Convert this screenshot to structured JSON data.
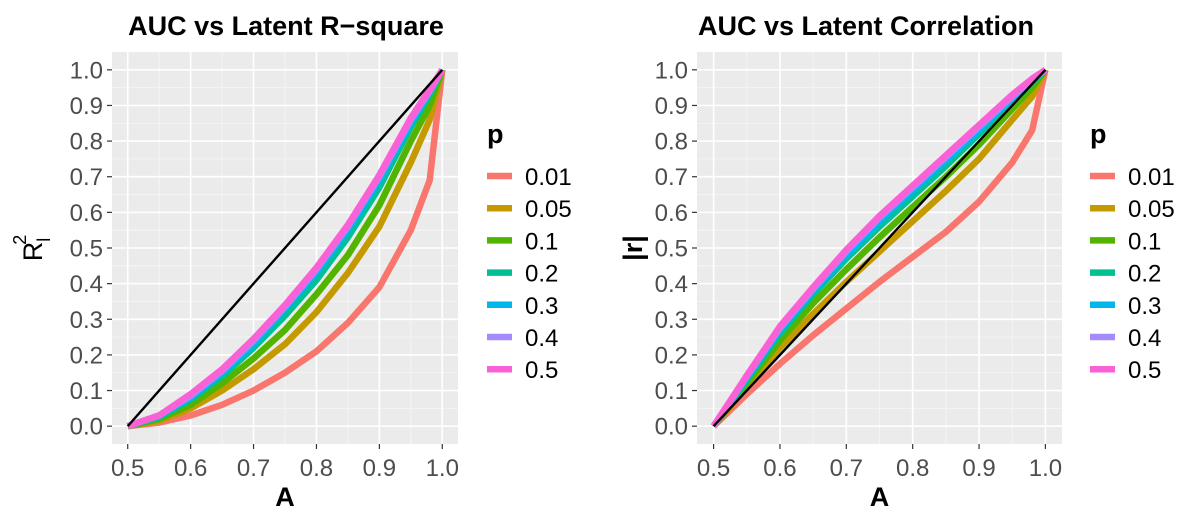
{
  "chart_data": [
    {
      "type": "line",
      "title": "AUC vs Latent R−square",
      "xlabel": "A",
      "ylabel": "R",
      "ylabel_sup": "2",
      "ylabel_sub": "l",
      "xlim": [
        0.5,
        1.0
      ],
      "ylim": [
        0.0,
        1.0
      ],
      "xticks": [
        "0.5",
        "0.6",
        "0.7",
        "0.8",
        "0.9",
        "1.0"
      ],
      "yticks": [
        "0.0",
        "0.1",
        "0.2",
        "0.3",
        "0.4",
        "0.5",
        "0.6",
        "0.7",
        "0.8",
        "0.9",
        "1.0"
      ],
      "grid": true,
      "legend_title": "p",
      "legend_position": "right",
      "x": [
        0.5,
        0.55,
        0.6,
        0.65,
        0.7,
        0.75,
        0.8,
        0.85,
        0.9,
        0.95,
        0.98,
        1.0
      ],
      "series": [
        {
          "name": "0.01",
          "color": "#F8766D",
          "values": [
            0.0,
            0.01,
            0.03,
            0.06,
            0.1,
            0.15,
            0.21,
            0.29,
            0.39,
            0.55,
            0.69,
            1.0
          ]
        },
        {
          "name": "0.05",
          "color": "#C49A00",
          "values": [
            0.0,
            0.015,
            0.05,
            0.1,
            0.16,
            0.23,
            0.32,
            0.43,
            0.56,
            0.74,
            0.86,
            1.0
          ]
        },
        {
          "name": "0.1",
          "color": "#53B400",
          "values": [
            0.0,
            0.02,
            0.06,
            0.12,
            0.19,
            0.27,
            0.37,
            0.48,
            0.62,
            0.8,
            0.9,
            1.0
          ]
        },
        {
          "name": "0.2",
          "color": "#00C094",
          "values": [
            0.0,
            0.025,
            0.075,
            0.14,
            0.22,
            0.31,
            0.41,
            0.53,
            0.67,
            0.84,
            0.93,
            1.0
          ]
        },
        {
          "name": "0.3",
          "color": "#00B6EB",
          "values": [
            0.0,
            0.03,
            0.08,
            0.15,
            0.23,
            0.33,
            0.43,
            0.55,
            0.69,
            0.85,
            0.94,
            1.0
          ]
        },
        {
          "name": "0.4",
          "color": "#A58AFF",
          "values": [
            0.0,
            0.03,
            0.085,
            0.155,
            0.24,
            0.335,
            0.44,
            0.56,
            0.7,
            0.86,
            0.94,
            1.0
          ]
        },
        {
          "name": "0.5",
          "color": "#FB61D7",
          "values": [
            0.0,
            0.03,
            0.09,
            0.16,
            0.245,
            0.34,
            0.445,
            0.565,
            0.705,
            0.865,
            0.945,
            1.0
          ]
        }
      ],
      "reference_line": {
        "color": "#000000",
        "x": [
          0.5,
          1.0
        ],
        "values": [
          0.0,
          1.0
        ]
      }
    },
    {
      "type": "line",
      "title": "AUC vs Latent Correlation",
      "xlabel": "A",
      "ylabel": "|r|",
      "xlim": [
        0.5,
        1.0
      ],
      "ylim": [
        0.0,
        1.0
      ],
      "xticks": [
        "0.5",
        "0.6",
        "0.7",
        "0.8",
        "0.9",
        "1.0"
      ],
      "yticks": [
        "0.0",
        "0.1",
        "0.2",
        "0.3",
        "0.4",
        "0.5",
        "0.6",
        "0.7",
        "0.8",
        "0.9",
        "1.0"
      ],
      "grid": true,
      "legend_title": "p",
      "legend_position": "right",
      "x": [
        0.5,
        0.55,
        0.6,
        0.65,
        0.7,
        0.75,
        0.8,
        0.85,
        0.9,
        0.95,
        0.98,
        1.0
      ],
      "series": [
        {
          "name": "0.01",
          "color": "#F8766D",
          "values": [
            0.0,
            0.09,
            0.175,
            0.255,
            0.33,
            0.405,
            0.475,
            0.545,
            0.63,
            0.74,
            0.83,
            1.0
          ]
        },
        {
          "name": "0.05",
          "color": "#C49A00",
          "values": [
            0.0,
            0.11,
            0.22,
            0.315,
            0.405,
            0.49,
            0.575,
            0.66,
            0.75,
            0.86,
            0.925,
            1.0
          ]
        },
        {
          "name": "0.1",
          "color": "#53B400",
          "values": [
            0.0,
            0.12,
            0.24,
            0.345,
            0.44,
            0.53,
            0.615,
            0.7,
            0.79,
            0.89,
            0.95,
            1.0
          ]
        },
        {
          "name": "0.2",
          "color": "#00C094",
          "values": [
            0.0,
            0.13,
            0.26,
            0.37,
            0.47,
            0.56,
            0.645,
            0.73,
            0.82,
            0.91,
            0.965,
            1.0
          ]
        },
        {
          "name": "0.3",
          "color": "#00B6EB",
          "values": [
            0.0,
            0.135,
            0.27,
            0.38,
            0.48,
            0.575,
            0.66,
            0.745,
            0.83,
            0.92,
            0.97,
            1.0
          ]
        },
        {
          "name": "0.4",
          "color": "#A58AFF",
          "values": [
            0.0,
            0.14,
            0.275,
            0.385,
            0.49,
            0.585,
            0.67,
            0.755,
            0.84,
            0.925,
            0.972,
            1.0
          ]
        },
        {
          "name": "0.5",
          "color": "#FB61D7",
          "values": [
            0.0,
            0.142,
            0.28,
            0.39,
            0.495,
            0.59,
            0.675,
            0.76,
            0.845,
            0.93,
            0.975,
            1.0
          ]
        }
      ],
      "reference_line": {
        "color": "#000000",
        "x": [
          0.5,
          1.0
        ],
        "values": [
          0.0,
          1.0
        ]
      }
    }
  ]
}
